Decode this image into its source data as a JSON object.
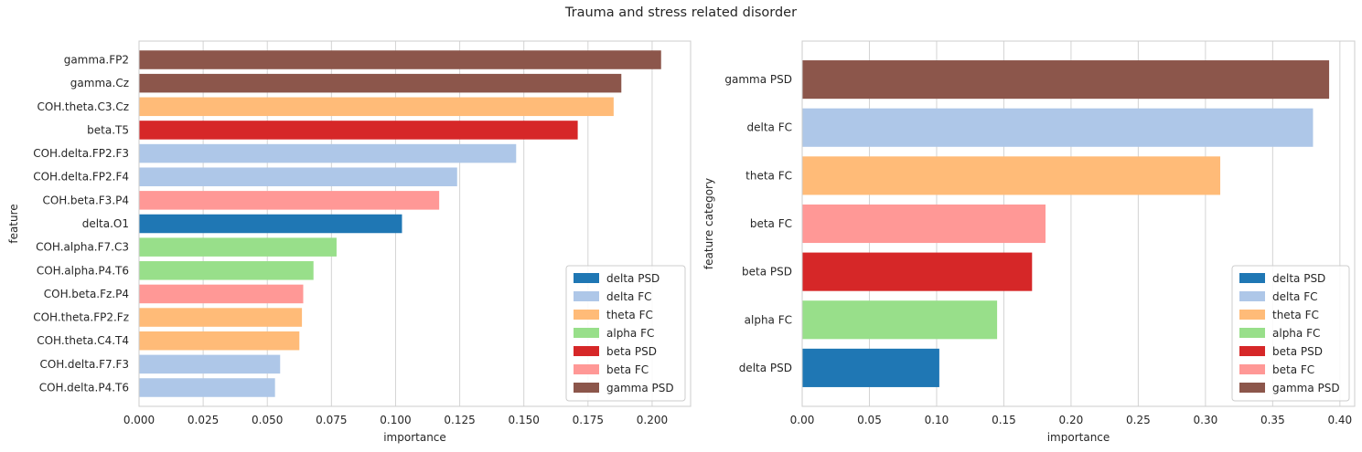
{
  "figure": {
    "title": "Trauma and stress related disorder"
  },
  "colors": {
    "delta PSD": "#1f77b4",
    "delta FC": "#aec7e8",
    "theta FC": "#ffbb78",
    "alpha FC": "#98df8a",
    "beta PSD": "#d62728",
    "beta FC": "#ff9896",
    "gamma PSD": "#8c564b"
  },
  "chart_data": [
    {
      "type": "bar",
      "orientation": "horizontal",
      "xlabel": "importance",
      "ylabel": "feature",
      "xlim": [
        0,
        0.215
      ],
      "xticks": [
        "0.000",
        "0.025",
        "0.050",
        "0.075",
        "0.100",
        "0.125",
        "0.150",
        "0.175",
        "0.200"
      ],
      "grid": true,
      "legend_position": "lower right",
      "legend": [
        "delta PSD",
        "delta FC",
        "theta FC",
        "alpha FC",
        "beta PSD",
        "beta FC",
        "gamma PSD"
      ],
      "bars": [
        {
          "label": "gamma.FP2",
          "value": 0.2035,
          "category": "gamma PSD"
        },
        {
          "label": "gamma.Cz",
          "value": 0.188,
          "category": "gamma PSD"
        },
        {
          "label": "COH.theta.C3.Cz",
          "value": 0.185,
          "category": "theta FC"
        },
        {
          "label": "beta.T5",
          "value": 0.171,
          "category": "beta PSD"
        },
        {
          "label": "COH.delta.FP2.F3",
          "value": 0.147,
          "category": "delta FC"
        },
        {
          "label": "COH.delta.FP2.F4",
          "value": 0.124,
          "category": "delta FC"
        },
        {
          "label": "COH.beta.F3.P4",
          "value": 0.117,
          "category": "beta FC"
        },
        {
          "label": "delta.O1",
          "value": 0.1025,
          "category": "delta PSD"
        },
        {
          "label": "COH.alpha.F7.C3",
          "value": 0.077,
          "category": "alpha FC"
        },
        {
          "label": "COH.alpha.P4.T6",
          "value": 0.068,
          "category": "alpha FC"
        },
        {
          "label": "COH.beta.Fz.P4",
          "value": 0.064,
          "category": "beta FC"
        },
        {
          "label": "COH.theta.FP2.Fz",
          "value": 0.0635,
          "category": "theta FC"
        },
        {
          "label": "COH.theta.C4.T4",
          "value": 0.0625,
          "category": "theta FC"
        },
        {
          "label": "COH.delta.F7.F3",
          "value": 0.055,
          "category": "delta FC"
        },
        {
          "label": "COH.delta.P4.T6",
          "value": 0.053,
          "category": "delta FC"
        }
      ]
    },
    {
      "type": "bar",
      "orientation": "horizontal",
      "xlabel": "importance",
      "ylabel": "feature category",
      "xlim": [
        0,
        0.411
      ],
      "xticks": [
        "0.00",
        "0.05",
        "0.10",
        "0.15",
        "0.20",
        "0.25",
        "0.30",
        "0.35",
        "0.40"
      ],
      "grid": true,
      "legend_position": "lower right",
      "legend": [
        "delta PSD",
        "delta FC",
        "theta FC",
        "alpha FC",
        "beta PSD",
        "beta FC",
        "gamma PSD"
      ],
      "bars": [
        {
          "label": "gamma PSD",
          "value": 0.392,
          "category": "gamma PSD"
        },
        {
          "label": "delta FC",
          "value": 0.38,
          "category": "delta FC"
        },
        {
          "label": "theta FC",
          "value": 0.311,
          "category": "theta FC"
        },
        {
          "label": "beta FC",
          "value": 0.181,
          "category": "beta FC"
        },
        {
          "label": "beta PSD",
          "value": 0.171,
          "category": "beta PSD"
        },
        {
          "label": "alpha FC",
          "value": 0.145,
          "category": "alpha FC"
        },
        {
          "label": "delta PSD",
          "value": 0.102,
          "category": "delta PSD"
        }
      ]
    }
  ]
}
